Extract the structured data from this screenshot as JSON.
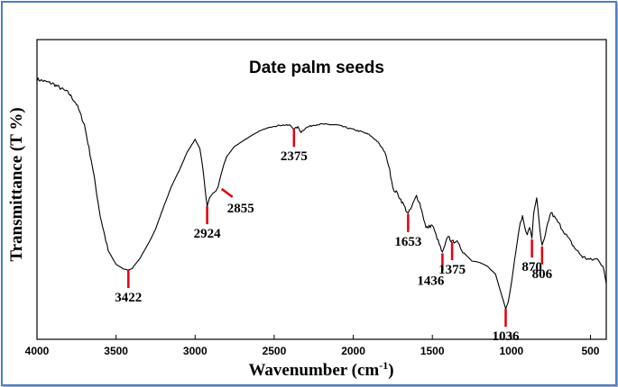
{
  "chart_data": {
    "type": "line",
    "title": "Date palm seeds",
    "xlabel": "Wavenumber (cm",
    "xlabel_superscript": "-1",
    "xlabel_close": ")",
    "ylabel": "Transmittance (T %)",
    "xlim": [
      4000,
      400
    ],
    "x_reversed": true,
    "ylim": [
      0,
      100
    ],
    "y_ticks_shown": false,
    "grid": false,
    "line_color": "#000000",
    "annotation_color": "#e0000f",
    "x_ticks": [
      "4000",
      "3500",
      "3000",
      "2500",
      "2000",
      "1500",
      "1000",
      "500"
    ],
    "series": [
      {
        "x": [
          4000,
          3900,
          3800,
          3750,
          3700,
          3650,
          3600,
          3550,
          3500,
          3450,
          3422,
          3400,
          3350,
          3300,
          3250,
          3200,
          3150,
          3100,
          3050,
          3000,
          2970,
          2950,
          2935,
          2924,
          2910,
          2890,
          2870,
          2855,
          2840,
          2820,
          2800,
          2750,
          2700,
          2650,
          2600,
          2550,
          2500,
          2450,
          2400,
          2375,
          2350,
          2330,
          2300,
          2250,
          2200,
          2100,
          2000,
          1950,
          1900,
          1850,
          1800,
          1770,
          1750,
          1720,
          1700,
          1680,
          1653,
          1630,
          1600,
          1580,
          1560,
          1540,
          1500,
          1470,
          1436,
          1420,
          1400,
          1375,
          1350,
          1300,
          1250,
          1200,
          1150,
          1100,
          1070,
          1050,
          1036,
          1020,
          1000,
          980,
          950,
          930,
          900,
          885,
          870,
          860,
          840,
          820,
          806,
          790,
          770,
          750,
          700,
          650,
          600,
          550,
          500,
          450,
          420,
          400
        ],
        "y": [
          86.8,
          85.3,
          82.2,
          78.5,
          71.6,
          57.9,
          41.1,
          29.6,
          25.0,
          23.4,
          23.1,
          23.6,
          26.9,
          31.5,
          36.8,
          44.1,
          51.0,
          56.4,
          62.5,
          66.7,
          63.6,
          56.7,
          49.0,
          44.4,
          47.1,
          48.6,
          49.4,
          50.8,
          54.2,
          58.0,
          61.0,
          64.4,
          66.1,
          67.8,
          69.3,
          70.4,
          71.1,
          71.5,
          71.4,
          70.2,
          70.8,
          69.1,
          70.6,
          71.5,
          71.8,
          71.5,
          70.0,
          69.3,
          68.3,
          66.2,
          62.5,
          57.0,
          50.2,
          48.6,
          46.7,
          44.7,
          41.8,
          44.2,
          47.9,
          45.5,
          41.6,
          37.1,
          38.1,
          33.8,
          28.7,
          31.2,
          34.6,
          32.4,
          32.9,
          28.8,
          26.2,
          25.6,
          24.3,
          21.7,
          16.3,
          12.7,
          10.2,
          12.5,
          18.6,
          26.4,
          37.2,
          41.1,
          34.6,
          37.6,
          33.3,
          41.8,
          47.5,
          36.3,
          31.0,
          33.4,
          38.6,
          42.4,
          38.6,
          34.5,
          30.5,
          27.5,
          26.5,
          26.8,
          24.1,
          18.6
        ]
      }
    ],
    "annotations": [
      {
        "label": "3422",
        "x": 3422,
        "y": 23.1,
        "label_side": "below"
      },
      {
        "label": "2924",
        "x": 2924,
        "y": 44.4,
        "label_side": "below"
      },
      {
        "label": "2855",
        "x": 2855,
        "y": 50.8,
        "label_side": "right"
      },
      {
        "label": "2375",
        "x": 2375,
        "y": 70.2,
        "label_side": "below"
      },
      {
        "label": "1653",
        "x": 1653,
        "y": 41.8,
        "label_side": "below"
      },
      {
        "label": "1436",
        "x": 1436,
        "y": 28.7,
        "label_side": "below-left"
      },
      {
        "label": "1375",
        "x": 1375,
        "y": 32.4,
        "label_side": "below"
      },
      {
        "label": "1036",
        "x": 1036,
        "y": 10.2,
        "label_side": "below"
      },
      {
        "label": "870",
        "x": 870,
        "y": 33.3,
        "label_side": "below"
      },
      {
        "label": "806",
        "x": 806,
        "y": 31.0,
        "label_side": "below"
      }
    ]
  }
}
